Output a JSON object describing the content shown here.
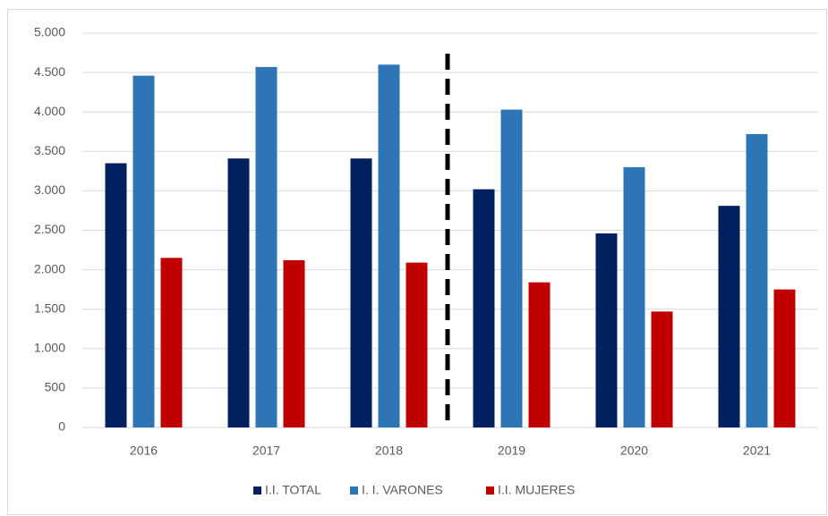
{
  "chart_data": {
    "type": "bar",
    "categories": [
      "2016",
      "2017",
      "2018",
      "2019",
      "2020",
      "2021"
    ],
    "series": [
      {
        "name": "I.I. TOTAL",
        "color": "#002060",
        "values": [
          3350,
          3410,
          3410,
          3020,
          2460,
          2810
        ]
      },
      {
        "name": "I. I. VARONES",
        "color": "#2e75b6",
        "values": [
          4460,
          4570,
          4600,
          4030,
          3300,
          3720
        ]
      },
      {
        "name": "I.I. MUJERES",
        "color": "#c00000",
        "values": [
          2150,
          2120,
          2090,
          1840,
          1470,
          1750
        ]
      }
    ],
    "ylim": [
      0,
      5000
    ],
    "yticks": [
      0,
      500,
      {
        "value": 1000,
        "label": "1.000"
      },
      {
        "value": 1500,
        "label": "1.500"
      },
      {
        "value": 2000,
        "label": "2.000"
      },
      {
        "value": 2500,
        "label": "2.500"
      },
      {
        "value": 3000,
        "label": "3.000"
      },
      {
        "value": 3500,
        "label": "3.500"
      },
      {
        "value": 4000,
        "label": "4.000"
      },
      {
        "value": 4500,
        "label": "4.500"
      },
      {
        "value": 5000,
        "label": "5.000"
      }
    ],
    "grid": true,
    "legend": "bottom"
  }
}
